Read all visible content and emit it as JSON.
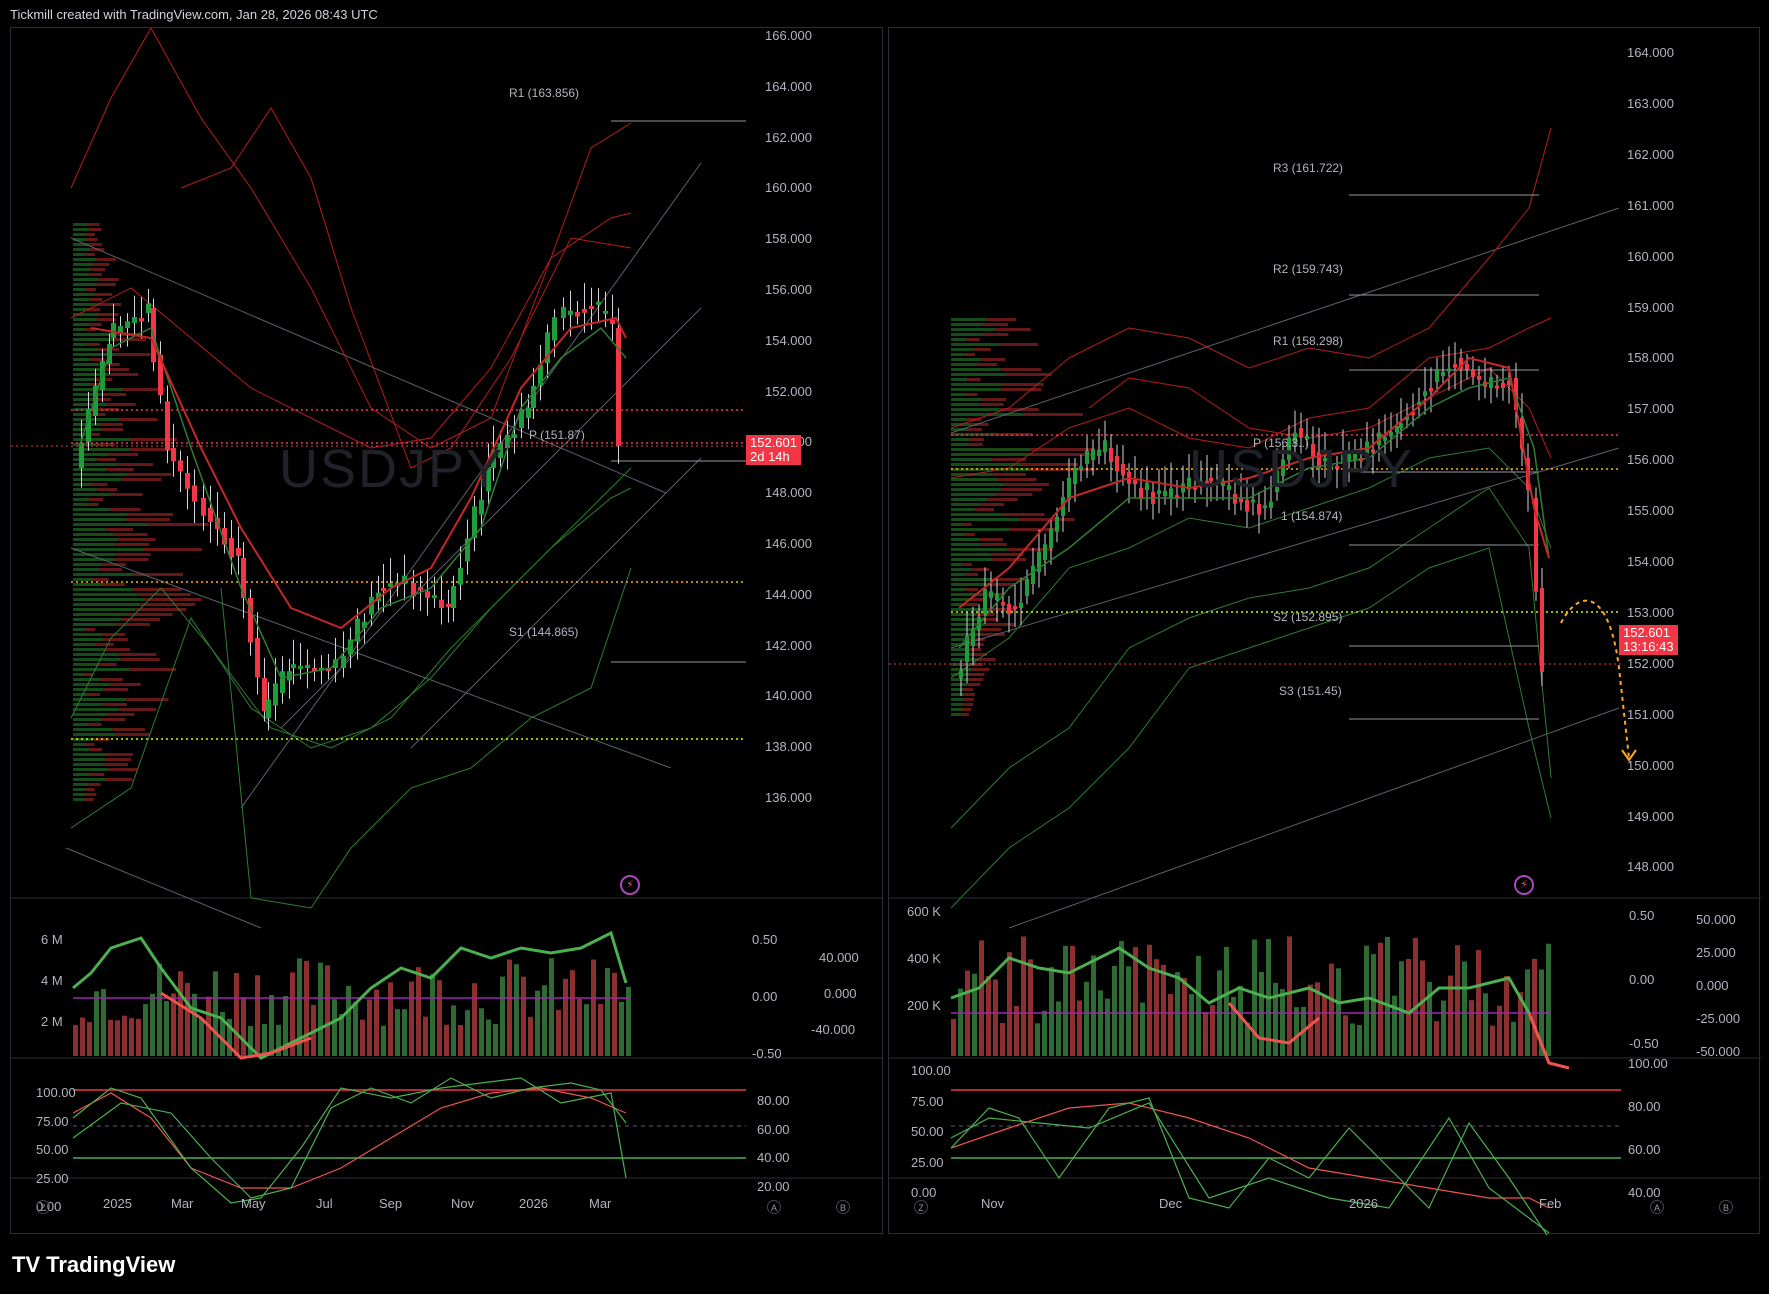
{
  "header": {
    "text": "Tickmill created with TradingView.com, Jan 28, 2026 08:43 UTC"
  },
  "footer": {
    "brand": "TradingView",
    "logo": "TV"
  },
  "colors": {
    "bull": "#089981",
    "bear": "#f23645",
    "green_line": "#2e7d32",
    "red_line": "#b71c1c"
  },
  "left": {
    "watermark": "USDJPY",
    "price_axis": [
      "166.000",
      "164.000",
      "162.000",
      "160.000",
      "158.000",
      "156.000",
      "154.000",
      "152.000",
      "150.000",
      "148.000",
      "146.000",
      "144.000",
      "142.000",
      "140.000",
      "138.000",
      "136.000"
    ],
    "price_label": "152.601",
    "countdown": "2d 14h",
    "levels": [
      {
        "label": "R1 (163.856)"
      },
      {
        "label": "P (151.87)"
      },
      {
        "label": "S1 (144.865)"
      }
    ],
    "time_axis": [
      "2025",
      "Mar",
      "May",
      "Jul",
      "Sep",
      "Nov",
      "2026",
      "Mar"
    ],
    "volume_axis": [
      "6 M",
      "4 M",
      "2 M"
    ],
    "osc1_axis": [
      "0.50",
      "0.00",
      "-0.50"
    ],
    "osc2_axis": [
      "40.000",
      "0.000",
      "-40.000"
    ],
    "stoch_axis_left": [
      "100.00",
      "75.00",
      "50.00",
      "25.00",
      "0.00"
    ],
    "stoch_axis_right": [
      "80.00",
      "60.00",
      "40.00",
      "20.00"
    ],
    "corner_buttons": {
      "z": "Z",
      "a": "A",
      "b": "B"
    }
  },
  "right": {
    "watermark": "USDJPY",
    "price_axis": [
      "164.000",
      "163.000",
      "162.000",
      "161.000",
      "160.000",
      "159.000",
      "158.000",
      "157.000",
      "156.000",
      "155.000",
      "154.000",
      "153.000",
      "152.000",
      "151.000",
      "150.000",
      "149.000",
      "148.000"
    ],
    "price_label": "152.601",
    "countdown": "13:16:43",
    "levels": [
      {
        "label": "R3 (161.722)"
      },
      {
        "label": "R2 (159.743)"
      },
      {
        "label": "R1 (158.298)"
      },
      {
        "label": "P (156.3..)"
      },
      {
        "label": "1 (154.874)"
      },
      {
        "label": "S2 (152.895)"
      },
      {
        "label": "S3 (151.45)"
      }
    ],
    "time_axis": [
      "Nov",
      "Dec",
      "2026",
      "Feb"
    ],
    "volume_axis": [
      "600 K",
      "400 K",
      "200 K"
    ],
    "osc1_axis": [
      "0.50",
      "0.00",
      "-0.50"
    ],
    "osc2_axis": [
      "50.000",
      "25.000",
      "0.000",
      "-25.000",
      "-50.000"
    ],
    "stoch_axis_left": [
      "100.00",
      "75.00",
      "50.00",
      "25.00",
      "0.00"
    ],
    "stoch_axis_right": [
      "100.00",
      "80.00",
      "60.00",
      "40.00"
    ],
    "corner_buttons": {
      "z": "Z",
      "a": "A",
      "b": "B"
    }
  }
}
